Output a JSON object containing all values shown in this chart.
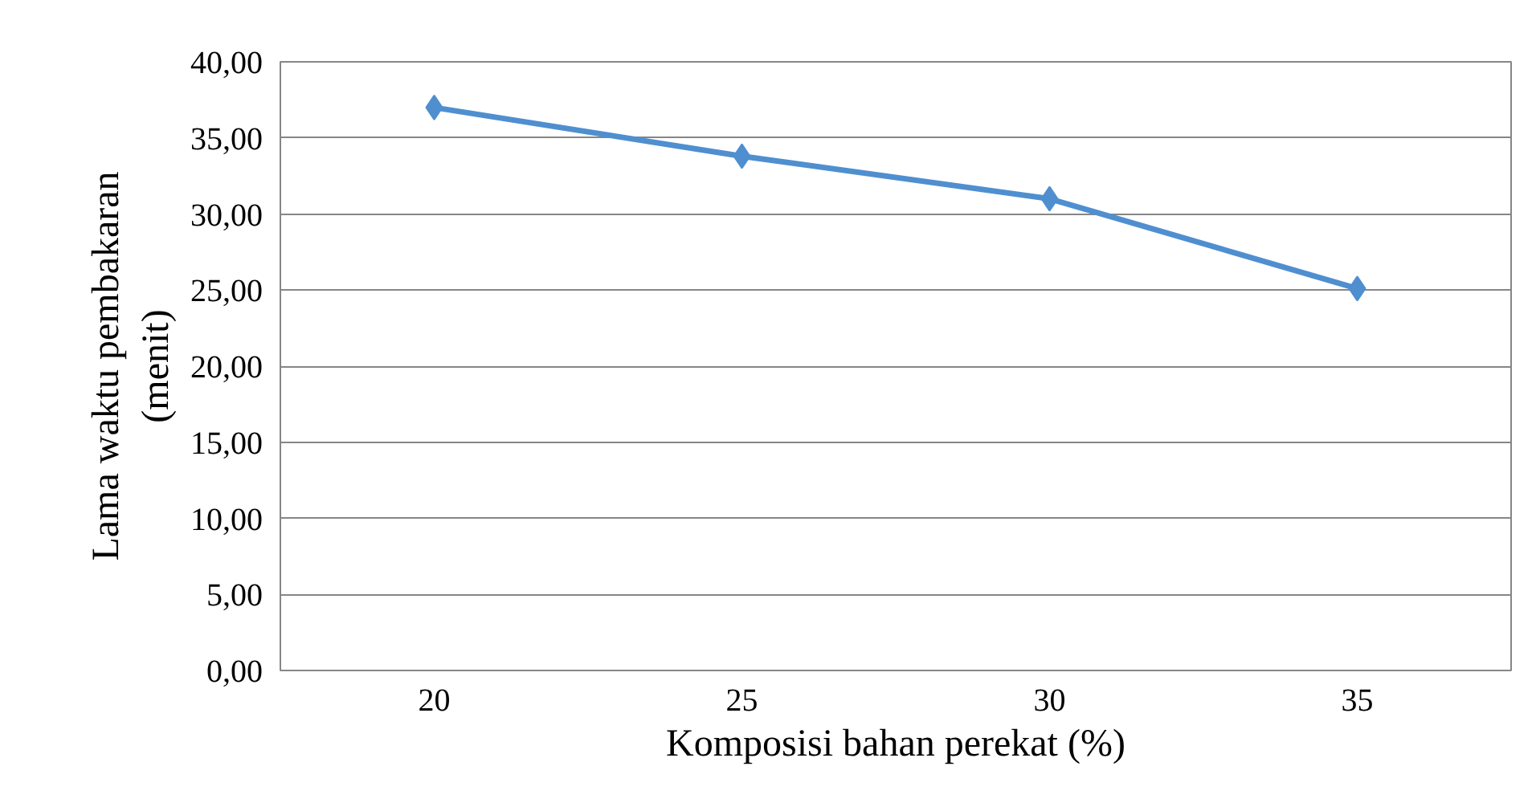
{
  "chart_data": {
    "type": "line",
    "xlabel": "Komposisi bahan perekat (%)",
    "ylabel": "Lama waktu pembakaran\n(menit)",
    "categories": [
      "20",
      "25",
      "30",
      "35"
    ],
    "series": [
      {
        "color": "#4f8fd0",
        "values": [
          37.0,
          33.8,
          31.0,
          25.1
        ]
      }
    ],
    "ylim": [
      0,
      40
    ],
    "yticks": [
      {
        "value": 0,
        "label": "0,00"
      },
      {
        "value": 5,
        "label": "5,00"
      },
      {
        "value": 10,
        "label": "10,00"
      },
      {
        "value": 15,
        "label": "15,00"
      },
      {
        "value": 20,
        "label": "20,00"
      },
      {
        "value": 25,
        "label": "25,00"
      },
      {
        "value": 30,
        "label": "30,00"
      },
      {
        "value": 35,
        "label": "35,00"
      },
      {
        "value": 40,
        "label": "40,00"
      }
    ],
    "grid": "y",
    "marker": "diamond",
    "line_style": "solid"
  }
}
